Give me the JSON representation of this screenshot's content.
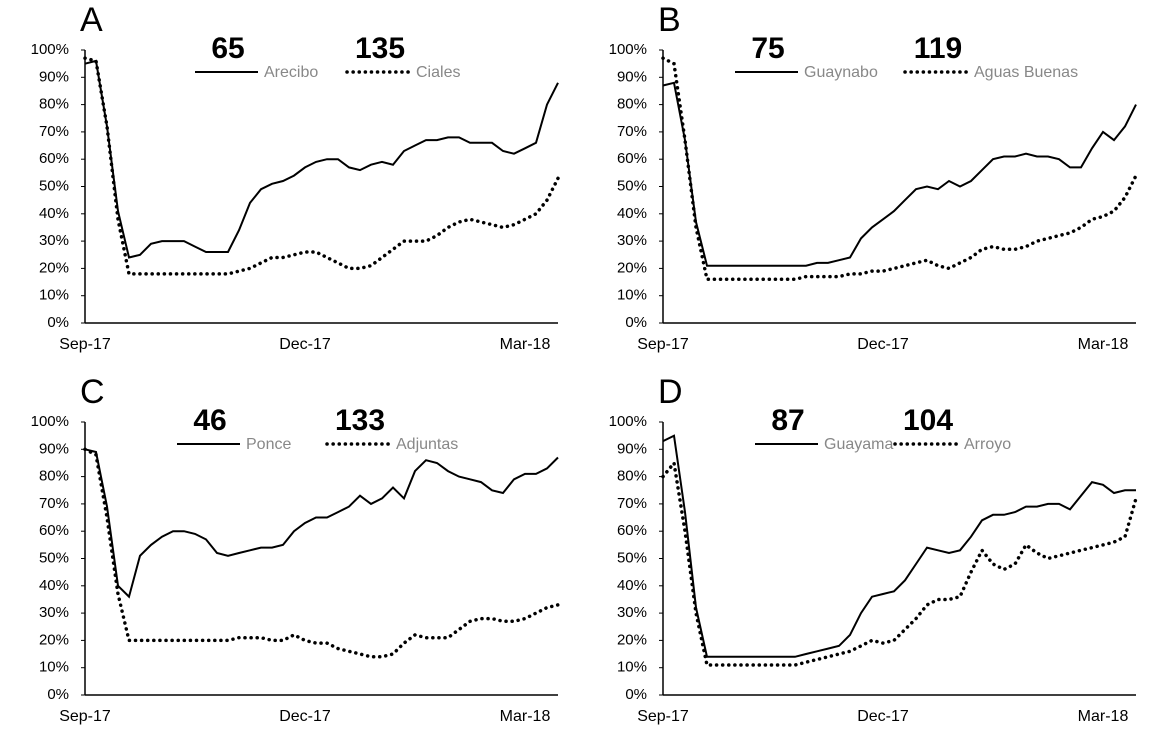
{
  "chart_data": [
    {
      "type": "line",
      "panel": "A",
      "categories": [
        "Sep-17",
        null,
        null,
        null,
        null,
        null,
        null,
        null,
        null,
        null,
        null,
        null,
        null,
        null,
        null,
        null,
        null,
        null,
        null,
        null,
        "Dec-17",
        null,
        null,
        null,
        null,
        null,
        null,
        null,
        null,
        null,
        null,
        null,
        null,
        null,
        null,
        null,
        null,
        null,
        null,
        null,
        "Mar-18",
        null,
        null,
        null
      ],
      "ylim": [
        0,
        100
      ],
      "yticks": [
        {
          "value": 0,
          "label": "0%"
        },
        {
          "value": 10,
          "label": "10%"
        },
        {
          "value": 20,
          "label": "20%"
        },
        {
          "value": 30,
          "label": "30%"
        },
        {
          "value": 40,
          "label": "40%"
        },
        {
          "value": 50,
          "label": "50%"
        },
        {
          "value": 60,
          "label": "60%"
        },
        {
          "value": 70,
          "label": "70%"
        },
        {
          "value": 80,
          "label": "80%"
        },
        {
          "value": 90,
          "label": "90%"
        },
        {
          "value": 100,
          "label": "100%"
        }
      ],
      "series": [
        {
          "name": "Arecibo",
          "number": 65,
          "color": "#000000",
          "dash": "solid",
          "values": [
            95,
            96,
            72,
            41,
            24,
            25,
            29,
            30,
            30,
            30,
            28,
            26,
            26,
            26,
            34,
            44,
            49,
            51,
            52,
            54,
            57,
            59,
            60,
            60,
            57,
            56,
            58,
            59,
            58,
            63,
            65,
            67,
            67,
            68,
            68,
            66,
            66,
            66,
            63,
            62,
            64,
            66,
            80,
            88
          ]
        },
        {
          "name": "Ciales",
          "number": 135,
          "color": "#000000",
          "dash": "dotted",
          "values": [
            97,
            96,
            72,
            38,
            18,
            18,
            18,
            18,
            18,
            18,
            18,
            18,
            18,
            18,
            19,
            20,
            22,
            24,
            24,
            25,
            26,
            26,
            24,
            22,
            20,
            20,
            21,
            24,
            27,
            30,
            30,
            30,
            32,
            35,
            37,
            38,
            37,
            36,
            35,
            36,
            38,
            40,
            45,
            53
          ]
        }
      ]
    },
    {
      "type": "line",
      "panel": "B",
      "categories": [
        "Sep-17",
        null,
        null,
        null,
        null,
        null,
        null,
        null,
        null,
        null,
        null,
        null,
        null,
        null,
        null,
        null,
        null,
        null,
        null,
        null,
        "Dec-17",
        null,
        null,
        null,
        null,
        null,
        null,
        null,
        null,
        null,
        null,
        null,
        null,
        null,
        null,
        null,
        null,
        null,
        null,
        null,
        "Mar-18",
        null,
        null,
        null
      ],
      "ylim": [
        0,
        100
      ],
      "yticks": [
        {
          "value": 0,
          "label": "0%"
        },
        {
          "value": 10,
          "label": "10%"
        },
        {
          "value": 20,
          "label": "20%"
        },
        {
          "value": 30,
          "label": "30%"
        },
        {
          "value": 40,
          "label": "40%"
        },
        {
          "value": 50,
          "label": "50%"
        },
        {
          "value": 60,
          "label": "60%"
        },
        {
          "value": 70,
          "label": "70%"
        },
        {
          "value": 80,
          "label": "80%"
        },
        {
          "value": 90,
          "label": "90%"
        },
        {
          "value": 100,
          "label": "100%"
        }
      ],
      "series": [
        {
          "name": "Guaynabo",
          "number": 75,
          "color": "#000000",
          "dash": "solid",
          "values": [
            87,
            88,
            67,
            37,
            21,
            21,
            21,
            21,
            21,
            21,
            21,
            21,
            21,
            21,
            22,
            22,
            23,
            24,
            31,
            35,
            38,
            41,
            45,
            49,
            50,
            49,
            52,
            50,
            52,
            56,
            60,
            61,
            61,
            62,
            61,
            61,
            60,
            57,
            57,
            64,
            70,
            67,
            72,
            80
          ]
        },
        {
          "name": "Aguas Buenas",
          "number": 119,
          "color": "#000000",
          "dash": "dotted",
          "values": [
            97,
            95,
            67,
            35,
            16,
            16,
            16,
            16,
            16,
            16,
            16,
            16,
            16,
            17,
            17,
            17,
            17,
            18,
            18,
            19,
            19,
            20,
            21,
            22,
            23,
            21,
            20,
            22,
            24,
            27,
            28,
            27,
            27,
            28,
            30,
            31,
            32,
            33,
            35,
            38,
            39,
            41,
            46,
            54
          ]
        }
      ]
    },
    {
      "type": "line",
      "panel": "C",
      "categories": [
        "Sep-17",
        null,
        null,
        null,
        null,
        null,
        null,
        null,
        null,
        null,
        null,
        null,
        null,
        null,
        null,
        null,
        null,
        null,
        null,
        null,
        "Dec-17",
        null,
        null,
        null,
        null,
        null,
        null,
        null,
        null,
        null,
        null,
        null,
        null,
        null,
        null,
        null,
        null,
        null,
        null,
        null,
        "Mar-18",
        null,
        null,
        null
      ],
      "ylim": [
        0,
        100
      ],
      "yticks": [
        {
          "value": 0,
          "label": "0%"
        },
        {
          "value": 10,
          "label": "10%"
        },
        {
          "value": 20,
          "label": "20%"
        },
        {
          "value": 30,
          "label": "30%"
        },
        {
          "value": 40,
          "label": "40%"
        },
        {
          "value": 50,
          "label": "50%"
        },
        {
          "value": 60,
          "label": "60%"
        },
        {
          "value": 70,
          "label": "70%"
        },
        {
          "value": 80,
          "label": "80%"
        },
        {
          "value": 90,
          "label": "90%"
        },
        {
          "value": 100,
          "label": "100%"
        }
      ],
      "series": [
        {
          "name": "Ponce",
          "number": 46,
          "color": "#000000",
          "dash": "solid",
          "values": [
            90,
            89,
            69,
            40,
            36,
            51,
            55,
            58,
            60,
            60,
            59,
            57,
            52,
            51,
            52,
            53,
            54,
            54,
            55,
            60,
            63,
            65,
            65,
            67,
            69,
            73,
            70,
            72,
            76,
            72,
            82,
            86,
            85,
            82,
            80,
            79,
            78,
            75,
            74,
            79,
            81,
            81,
            83,
            87
          ]
        },
        {
          "name": "Adjuntas",
          "number": 133,
          "color": "#000000",
          "dash": "dotted",
          "values": [
            90,
            88,
            65,
            37,
            20,
            20,
            20,
            20,
            20,
            20,
            20,
            20,
            20,
            20,
            21,
            21,
            21,
            20,
            20,
            22,
            20,
            19,
            19,
            17,
            16,
            15,
            14,
            14,
            15,
            19,
            22,
            21,
            21,
            21,
            24,
            27,
            28,
            28,
            27,
            27,
            28,
            30,
            32,
            33
          ]
        }
      ]
    },
    {
      "type": "line",
      "panel": "D",
      "categories": [
        "Sep-17",
        null,
        null,
        null,
        null,
        null,
        null,
        null,
        null,
        null,
        null,
        null,
        null,
        null,
        null,
        null,
        null,
        null,
        null,
        null,
        "Dec-17",
        null,
        null,
        null,
        null,
        null,
        null,
        null,
        null,
        null,
        null,
        null,
        null,
        null,
        null,
        null,
        null,
        null,
        null,
        null,
        "Mar-18",
        null,
        null,
        null
      ],
      "ylim": [
        0,
        100
      ],
      "yticks": [
        {
          "value": 0,
          "label": "0%"
        },
        {
          "value": 10,
          "label": "10%"
        },
        {
          "value": 20,
          "label": "20%"
        },
        {
          "value": 30,
          "label": "30%"
        },
        {
          "value": 40,
          "label": "40%"
        },
        {
          "value": 50,
          "label": "50%"
        },
        {
          "value": 60,
          "label": "60%"
        },
        {
          "value": 70,
          "label": "70%"
        },
        {
          "value": 80,
          "label": "80%"
        },
        {
          "value": 90,
          "label": "90%"
        },
        {
          "value": 100,
          "label": "100%"
        }
      ],
      "series": [
        {
          "name": "Guayama",
          "number": 87,
          "color": "#000000",
          "dash": "solid",
          "values": [
            93,
            95,
            67,
            32,
            14,
            14,
            14,
            14,
            14,
            14,
            14,
            14,
            14,
            15,
            16,
            17,
            18,
            22,
            30,
            36,
            37,
            38,
            42,
            48,
            54,
            53,
            52,
            53,
            58,
            64,
            66,
            66,
            67,
            69,
            69,
            70,
            70,
            68,
            73,
            78,
            77,
            74,
            75,
            75
          ]
        },
        {
          "name": "Arroyo",
          "number": 104,
          "color": "#000000",
          "dash": "dotted",
          "values": [
            80,
            85,
            60,
            30,
            11,
            11,
            11,
            11,
            11,
            11,
            11,
            11,
            11,
            12,
            13,
            14,
            15,
            16,
            18,
            20,
            19,
            20,
            24,
            28,
            33,
            35,
            35,
            36,
            45,
            53,
            48,
            46,
            48,
            55,
            52,
            50,
            51,
            52,
            53,
            54,
            55,
            56,
            58,
            72
          ]
        }
      ]
    }
  ]
}
